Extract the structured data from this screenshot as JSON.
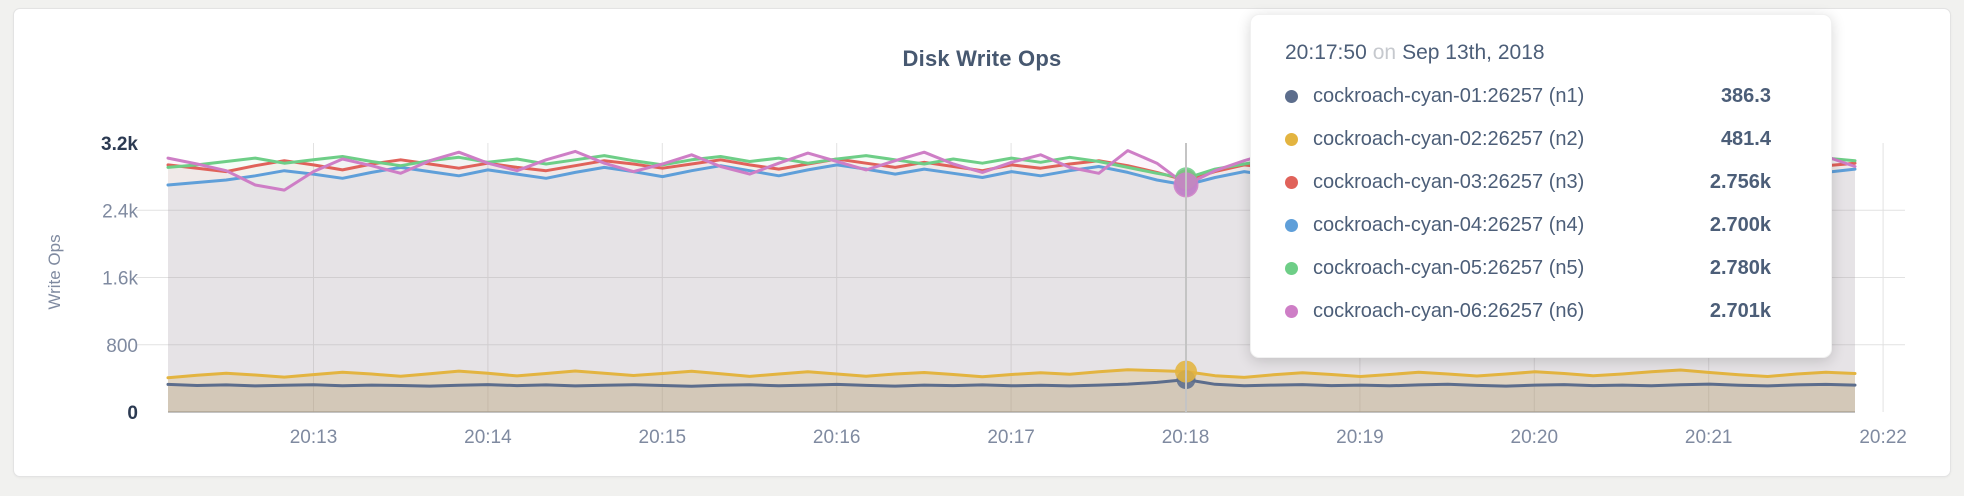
{
  "card": {
    "title": "Disk Write Ops"
  },
  "tooltip": {
    "time": "20:17:50",
    "conjunction": "on",
    "date": "Sep 13th, 2018",
    "rows": [
      {
        "series": "cockroach-cyan-01:26257 (n1)",
        "value": "386.3",
        "color": "#5c6d8c"
      },
      {
        "series": "cockroach-cyan-02:26257 (n2)",
        "value": "481.4",
        "color": "#e3b440"
      },
      {
        "series": "cockroach-cyan-03:26257 (n3)",
        "value": "2.756k",
        "color": "#e0625a"
      },
      {
        "series": "cockroach-cyan-04:26257 (n4)",
        "value": "2.700k",
        "color": "#5f9fd9"
      },
      {
        "series": "cockroach-cyan-05:26257 (n5)",
        "value": "2.780k",
        "color": "#6ece87"
      },
      {
        "series": "cockroach-cyan-06:26257 (n6)",
        "value": "2.701k",
        "color": "#ce7ec6"
      }
    ]
  },
  "chart_data": {
    "type": "line",
    "title": "Disk Write Ops",
    "ylabel": "Write Ops",
    "ylim": [
      0,
      3200
    ],
    "grid": true,
    "legend_position": "tooltip-overlay",
    "x_start_time": "20:12:10",
    "x_step_seconds": 10,
    "hover": {
      "index": 35,
      "time": "20:17:50"
    },
    "y_ticks": [
      {
        "label": "0",
        "value": 0,
        "strong": true
      },
      {
        "label": "800",
        "value": 800,
        "strong": false
      },
      {
        "label": "1.6k",
        "value": 1600,
        "strong": false
      },
      {
        "label": "2.4k",
        "value": 2400,
        "strong": false
      },
      {
        "label": "3.2k",
        "value": 3200,
        "strong": true
      }
    ],
    "x_ticks": [
      "20:13",
      "20:14",
      "20:15",
      "20:16",
      "20:17",
      "20:18",
      "20:19",
      "20:20",
      "20:21",
      "20:22"
    ],
    "series": [
      {
        "id": "n1",
        "name": "cockroach-cyan-01:26257 (n1)",
        "color": "#5c6d8c",
        "fill_opacity": 0.15,
        "values": [
          328,
          315,
          322,
          310,
          318,
          325,
          312,
          320,
          315,
          308,
          318,
          326,
          314,
          322,
          310,
          318,
          325,
          315,
          306,
          318,
          324,
          312,
          320,
          328,
          316,
          308,
          320,
          314,
          322,
          312,
          318,
          310,
          320,
          332,
          352,
          386,
          330,
          312,
          320,
          326,
          314,
          320,
          312,
          322,
          330,
          316,
          308,
          320,
          326,
          314,
          320,
          312,
          324,
          332,
          318,
          310,
          322,
          328,
          320
        ]
      },
      {
        "id": "n2",
        "name": "cockroach-cyan-02:26257 (n2)",
        "color": "#e3b440",
        "fill_opacity": 0.25,
        "values": [
          408,
          436,
          462,
          440,
          415,
          445,
          472,
          452,
          425,
          455,
          486,
          460,
          430,
          458,
          488,
          462,
          434,
          458,
          484,
          454,
          424,
          452,
          478,
          452,
          426,
          452,
          470,
          446,
          420,
          446,
          468,
          448,
          478,
          502,
          492,
          481,
          432,
          412,
          442,
          466,
          446,
          422,
          446,
          472,
          452,
          428,
          452,
          478,
          458,
          432,
          452,
          478,
          500,
          470,
          442,
          422,
          452,
          472,
          458
        ]
      },
      {
        "id": "n3",
        "name": "cockroach-cyan-03:26257 (n3)",
        "color": "#e0625a",
        "fill_opacity": 0.07,
        "values": [
          2940,
          2900,
          2860,
          2930,
          2990,
          2940,
          2880,
          2950,
          3000,
          2950,
          2900,
          2960,
          2910,
          2870,
          2930,
          2990,
          2950,
          2900,
          2950,
          3000,
          2940,
          2890,
          2950,
          3010,
          2960,
          2910,
          2970,
          2920,
          2870,
          2940,
          2900,
          2950,
          2990,
          2930,
          2850,
          2756,
          2860,
          2940,
          2900,
          2960,
          3010,
          2950,
          2900,
          2940,
          2890,
          2950,
          2910,
          2970,
          2930,
          2880,
          2940,
          2990,
          2950,
          2900,
          2860,
          2920,
          2980,
          2930,
          2960
        ]
      },
      {
        "id": "n4",
        "name": "cockroach-cyan-04:26257 (n4)",
        "color": "#5f9fd9",
        "fill_opacity": 0.07,
        "values": [
          2700,
          2730,
          2760,
          2810,
          2870,
          2830,
          2780,
          2850,
          2910,
          2860,
          2810,
          2880,
          2830,
          2780,
          2850,
          2910,
          2860,
          2800,
          2870,
          2930,
          2870,
          2810,
          2880,
          2940,
          2890,
          2830,
          2890,
          2840,
          2790,
          2860,
          2810,
          2870,
          2920,
          2850,
          2760,
          2700,
          2790,
          2860,
          2810,
          2880,
          2940,
          2880,
          2820,
          2890,
          2830,
          2900,
          2850,
          2910,
          2860,
          2800,
          2870,
          2930,
          2880,
          2820,
          2770,
          2840,
          2900,
          2850,
          2890
        ]
      },
      {
        "id": "n5",
        "name": "cockroach-cyan-05:26257 (n5)",
        "color": "#6ece87",
        "fill_opacity": 0.07,
        "values": [
          2910,
          2940,
          2980,
          3020,
          2960,
          3000,
          3040,
          2980,
          2930,
          2990,
          3030,
          2970,
          3010,
          2950,
          3000,
          3050,
          2990,
          2940,
          3000,
          3040,
          2980,
          3020,
          2960,
          3010,
          3050,
          3000,
          2950,
          3010,
          2960,
          3020,
          2970,
          3030,
          2980,
          2910,
          2840,
          2780,
          2890,
          2950,
          3010,
          2960,
          3020,
          3070,
          3010,
          2960,
          3020,
          2970,
          3030,
          2980,
          3040,
          2990,
          2940,
          3000,
          3050,
          3000,
          2950,
          3010,
          2960,
          3020,
          2990
        ]
      },
      {
        "id": "n6",
        "name": "cockroach-cyan-06:26257 (n6)",
        "color": "#ce7ec6",
        "fill_opacity": 0.07,
        "values": [
          3020,
          2950,
          2870,
          2700,
          2640,
          2860,
          3010,
          2930,
          2840,
          2990,
          3090,
          2960,
          2870,
          3000,
          3100,
          2960,
          2860,
          2950,
          3060,
          2920,
          2830,
          2960,
          3080,
          2980,
          2880,
          2990,
          3090,
          2950,
          2850,
          2970,
          3060,
          2910,
          2840,
          3110,
          2960,
          2701,
          2870,
          2990,
          3090,
          2960,
          2870,
          2990,
          3070,
          2950,
          2860,
          2980,
          3060,
          2930,
          2850,
          2970,
          3050,
          2920,
          2840,
          2960,
          3040,
          2900,
          2960,
          3040,
          2920
        ]
      }
    ]
  }
}
